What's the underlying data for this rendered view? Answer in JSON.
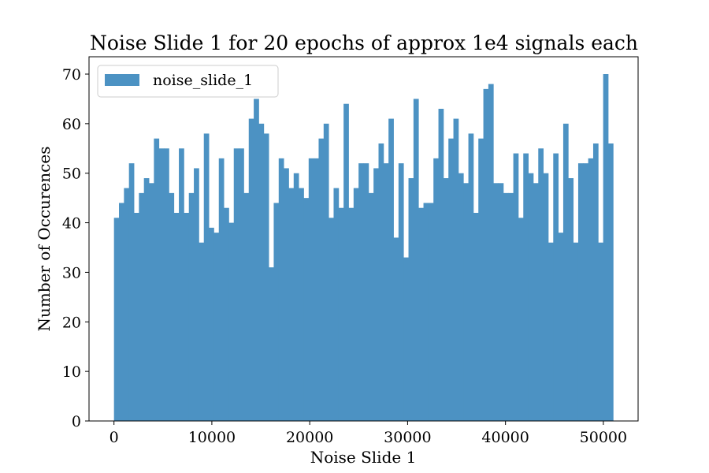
{
  "chart_data": {
    "type": "bar",
    "title": "Noise Slide 1 for 20 epochs of approx 1e4 signals each",
    "xlabel": "Noise Slide 1",
    "ylabel": "Number of Occurences",
    "xlim": [
      -2550,
      53550
    ],
    "ylim": [
      0,
      73.5
    ],
    "xticks": [
      0,
      10000,
      20000,
      30000,
      40000,
      50000
    ],
    "yticks": [
      0,
      10,
      20,
      30,
      40,
      50,
      60,
      70
    ],
    "grid": false,
    "legend_position": "top-left",
    "bin_start": 0,
    "bin_width": 510,
    "series": [
      {
        "name": "noise_slide_1",
        "color": "#4c92c3",
        "values": [
          41,
          44,
          47,
          52,
          42,
          46,
          49,
          48,
          57,
          55,
          55,
          46,
          42,
          55,
          42,
          46,
          51,
          36,
          58,
          39,
          38,
          53,
          43,
          40,
          55,
          55,
          46,
          61,
          65,
          60,
          58,
          31,
          44,
          53,
          51,
          47,
          50,
          47,
          45,
          53,
          53,
          57,
          60,
          41,
          47,
          43,
          64,
          43,
          47,
          52,
          52,
          46,
          51,
          56,
          52,
          61,
          37,
          52,
          33,
          49,
          65,
          43,
          44,
          44,
          53,
          63,
          49,
          57,
          61,
          50,
          48,
          58,
          42,
          57,
          67,
          68,
          48,
          48,
          46,
          46,
          54,
          41,
          54,
          50,
          48,
          55,
          50,
          36,
          54,
          38,
          60,
          49,
          36,
          52,
          52,
          53,
          56,
          36,
          70,
          56
        ]
      }
    ]
  }
}
